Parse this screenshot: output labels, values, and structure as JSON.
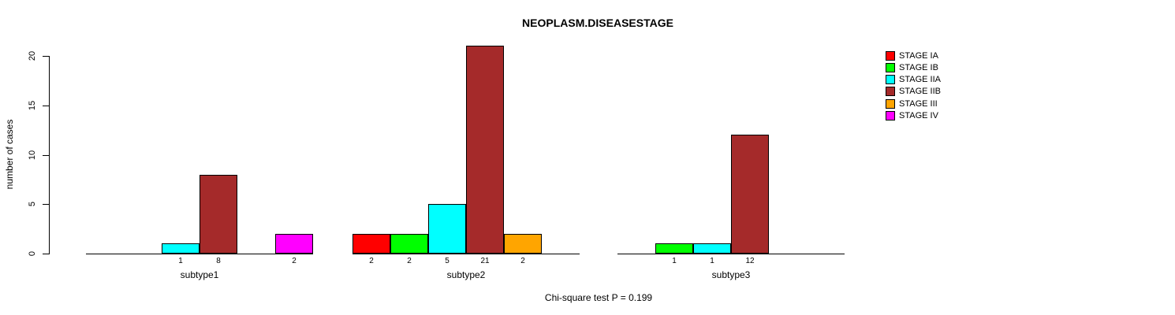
{
  "chart_data": {
    "type": "bar",
    "title": "NEOPLASM.DISEASESTAGE",
    "ylabel": "number of cases",
    "annotation": "Chi-square test P = 0.199",
    "ylim": [
      0,
      20
    ],
    "yticks": [
      0,
      5,
      10,
      15,
      20
    ],
    "grid": false,
    "legend_position": "right",
    "categories": [
      "subtype1",
      "subtype2",
      "subtype3"
    ],
    "series": [
      {
        "name": "STAGE IA",
        "color": "#FF0000",
        "values": [
          0,
          2,
          0
        ]
      },
      {
        "name": "STAGE IB",
        "color": "#00FF00",
        "values": [
          0,
          2,
          1
        ]
      },
      {
        "name": "STAGE IIA",
        "color": "#00FFFF",
        "values": [
          1,
          5,
          1
        ]
      },
      {
        "name": "STAGE IIB",
        "color": "#A52A2A",
        "values": [
          8,
          21,
          12
        ]
      },
      {
        "name": "STAGE III",
        "color": "#FFA500",
        "values": [
          0,
          2,
          0
        ]
      },
      {
        "name": "STAGE IV",
        "color": "#FF00FF",
        "values": [
          2,
          0,
          0
        ]
      }
    ],
    "bar_value_labels": {
      "subtype1": [
        "",
        "",
        "1",
        "8",
        "",
        "2"
      ],
      "subtype2": [
        "2",
        "2",
        "5",
        "21",
        "2",
        ""
      ],
      "subtype3": [
        "",
        "1",
        "1",
        "12",
        "",
        ""
      ]
    }
  }
}
